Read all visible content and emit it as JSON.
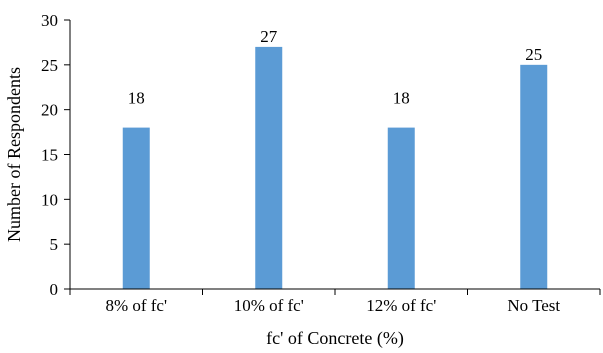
{
  "chart_data": {
    "type": "bar",
    "categories": [
      "8% of fc'",
      "10% of fc'",
      "12% of fc'",
      "No Test"
    ],
    "values": [
      18,
      27,
      18,
      25
    ],
    "data_labels": [
      "18",
      "27",
      "18",
      "25"
    ],
    "xlabel": "fc' of Concrete (%)",
    "ylabel": "Number of Respondents",
    "ylim": [
      0,
      30
    ],
    "yticks": [
      "0",
      "5",
      "10",
      "15",
      "20",
      "25",
      "30"
    ],
    "bar_color": "#5B9BD5",
    "grid": false,
    "legend": "none"
  }
}
